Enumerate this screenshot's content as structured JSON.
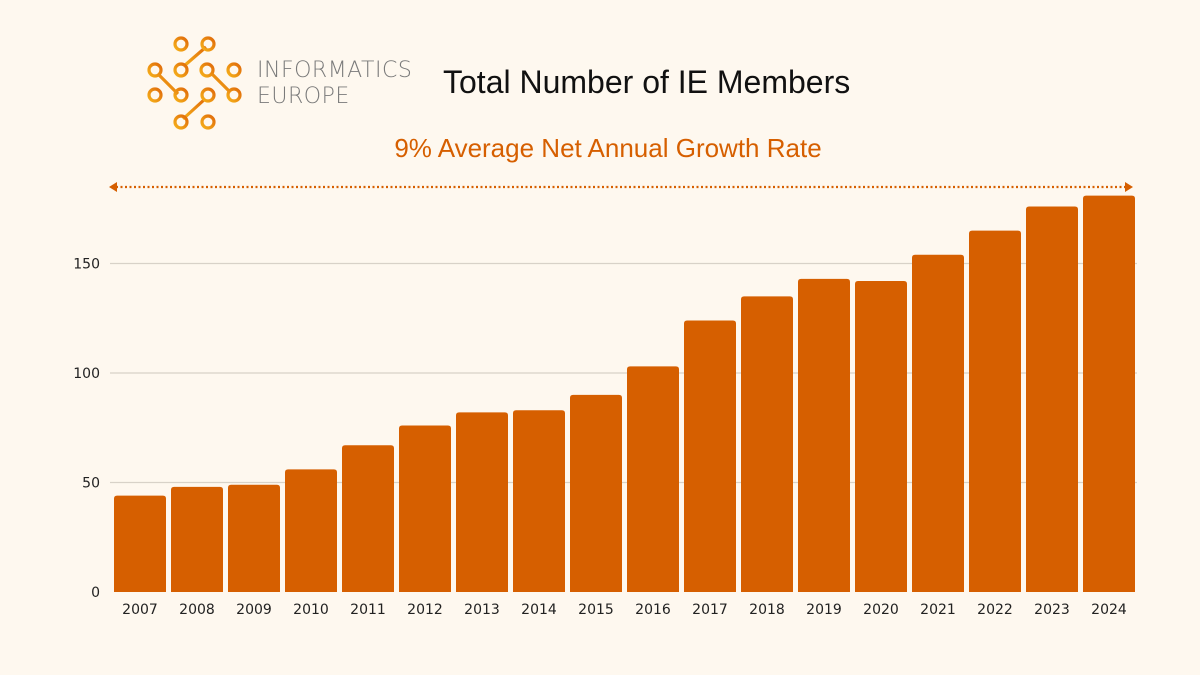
{
  "logo": {
    "line1": "INFORMATICS",
    "line2": "EUROPE"
  },
  "title": "Total Number of IE Members",
  "subtitle": "9% Average Net Annual Growth Rate",
  "colors": {
    "bar": "#d65f00",
    "grid": "#d8d2c8",
    "background": "#fef8ef",
    "accent": "#d65f00"
  },
  "chart_data": {
    "type": "bar",
    "title": "Total Number of IE Members",
    "categories": [
      "2007",
      "2008",
      "2009",
      "2010",
      "2011",
      "2012",
      "2013",
      "2014",
      "2015",
      "2016",
      "2017",
      "2018",
      "2019",
      "2020",
      "2021",
      "2022",
      "2023",
      "2024"
    ],
    "values": [
      44,
      48,
      49,
      56,
      67,
      76,
      82,
      83,
      90,
      103,
      124,
      135,
      143,
      142,
      154,
      165,
      176,
      181
    ],
    "yticks": [
      0,
      50,
      100,
      150
    ],
    "ylim": [
      0,
      190
    ],
    "grid": true,
    "annotation": "9% Average Net Annual Growth Rate",
    "annotation_arrow": "double-headed dotted arrow spanning 2007–2024"
  }
}
